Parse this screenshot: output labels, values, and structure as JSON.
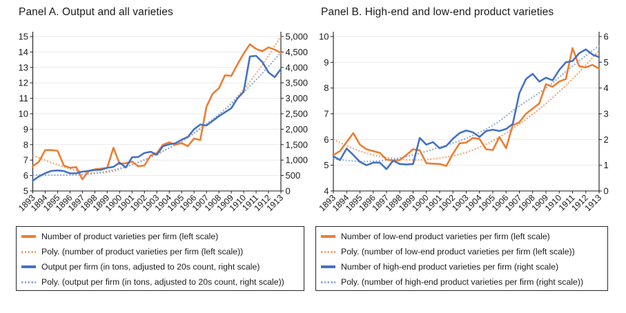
{
  "colors": {
    "orange": "#ED7D31",
    "orange_light": "#F2A16E",
    "blue": "#4472C4",
    "blue_light": "#8FAADC",
    "grid": "#e9e9e9",
    "axis": "#1a1a1a",
    "text": "#1a1a1a",
    "background": "#ffffff"
  },
  "chart_data": [
    {
      "type": "line",
      "title": "Panel A. Output and all varieties",
      "x_start": 1893,
      "x_step": 0.5,
      "x_ticks": [
        "1893",
        "1894",
        "1895",
        "1896",
        "1897",
        "1898",
        "1899",
        "1900",
        "1901",
        "1902",
        "1903",
        "1904",
        "1905",
        "1906",
        "1907",
        "1908",
        "1909",
        "1910",
        "1911",
        "1912",
        "1913"
      ],
      "left_axis": {
        "range": [
          5,
          15
        ],
        "tick_values": [
          5,
          6,
          7,
          8,
          9,
          10,
          11,
          12,
          13,
          14,
          15
        ],
        "tick_labels": [
          "5",
          "6",
          "7",
          "8",
          "9",
          "10",
          "11",
          "12",
          "13",
          "14",
          "15"
        ]
      },
      "right_axis": {
        "range": [
          0,
          5000
        ],
        "tick_values": [
          0,
          500,
          1000,
          1500,
          2000,
          2500,
          3000,
          3500,
          4000,
          4500,
          5000
        ],
        "tick_labels": [
          "0",
          "500",
          "1,000",
          "1,500",
          "2,000",
          "2,500",
          "3,000",
          "3,500",
          "4,000",
          "4,500",
          "5,000"
        ]
      },
      "series": [
        {
          "name": "varieties",
          "label": "Number of product varieties per firm (left scale)",
          "color_key": "orange",
          "style": "solid",
          "scale": "left",
          "values": [
            6.6,
            6.9,
            7.65,
            7.65,
            7.6,
            6.65,
            6.5,
            6.55,
            5.75,
            6.3,
            6.4,
            6.45,
            6.5,
            7.8,
            6.75,
            6.8,
            6.9,
            6.6,
            6.65,
            7.3,
            7.45,
            8.0,
            8.15,
            8.0,
            8.1,
            7.9,
            8.4,
            8.3,
            10.45,
            11.3,
            11.65,
            12.5,
            12.45,
            13.2,
            13.9,
            14.5,
            14.2,
            14.05,
            14.3,
            14.15,
            13.95
          ]
        },
        {
          "name": "varieties-trend",
          "label": "Poly. (number of product varieties per firm (left scale))",
          "color_key": "orange_light",
          "style": "dotted",
          "scale": "left",
          "x": [
            1893,
            1895,
            1897,
            1899,
            1901,
            1903,
            1905,
            1907,
            1909,
            1911,
            1913
          ],
          "values": [
            7.3,
            6.7,
            6.25,
            6.2,
            6.7,
            7.4,
            8.2,
            9.3,
            10.7,
            12.6,
            15.0
          ]
        },
        {
          "name": "output",
          "label": "Output per firm (in tons, adjusted to 20s count, right scale)",
          "color_key": "blue",
          "style": "solid",
          "scale": "right",
          "values": [
            335,
            470,
            575,
            650,
            665,
            645,
            570,
            575,
            625,
            650,
            680,
            685,
            750,
            780,
            920,
            760,
            1090,
            1100,
            1230,
            1270,
            1175,
            1450,
            1510,
            1545,
            1660,
            1750,
            2000,
            2150,
            2120,
            2270,
            2420,
            2550,
            2680,
            3000,
            3215,
            4355,
            4375,
            4175,
            3840,
            3685,
            3950
          ]
        },
        {
          "name": "output-trend",
          "label": "Poly. (output per firm (in tons, adjusted to 20s count, right scale))",
          "color_key": "blue_light",
          "style": "dotted",
          "scale": "right",
          "x": [
            1893,
            1895,
            1897,
            1899,
            1901,
            1903,
            1905,
            1907,
            1909,
            1911,
            1913
          ],
          "values": [
            515,
            515,
            530,
            640,
            850,
            1180,
            1630,
            2170,
            2820,
            3600,
            4480
          ]
        }
      ]
    },
    {
      "type": "line",
      "title": "Panel B. High-end and low-end product varieties",
      "x_start": 1893,
      "x_step": 0.5,
      "x_ticks": [
        "1893",
        "1894",
        "1895",
        "1896",
        "1897",
        "1898",
        "1899",
        "1900",
        "1901",
        "1902",
        "1903",
        "1904",
        "1905",
        "1906",
        "1907",
        "1908",
        "1909",
        "1910",
        "1911",
        "1912",
        "1913"
      ],
      "left_axis": {
        "range": [
          4,
          10
        ],
        "tick_values": [
          4,
          5,
          6,
          7,
          8,
          9,
          10
        ],
        "tick_labels": [
          "4",
          "5",
          "6",
          "7",
          "8",
          "9",
          "10"
        ]
      },
      "right_axis": {
        "range": [
          0,
          6
        ],
        "tick_values": [
          0,
          1,
          2,
          3,
          4,
          5,
          6
        ],
        "tick_labels": [
          "0",
          "1",
          "2",
          "3",
          "4",
          "5",
          "6"
        ]
      },
      "series": [
        {
          "name": "low-end-varieties",
          "label": "Number of low-end product varieties per firm (left scale)",
          "color_key": "orange",
          "style": "solid",
          "scale": "left",
          "values": [
            5.4,
            5.55,
            5.9,
            6.25,
            5.8,
            5.62,
            5.55,
            5.48,
            5.22,
            5.18,
            5.2,
            5.4,
            5.62,
            5.58,
            5.08,
            5.06,
            5.05,
            4.97,
            5.45,
            5.85,
            5.88,
            6.06,
            6.02,
            5.62,
            5.59,
            6.1,
            5.66,
            6.55,
            6.67,
            7.0,
            7.2,
            7.4,
            8.15,
            8.05,
            8.25,
            8.35,
            9.55,
            8.85,
            8.8,
            8.9,
            8.75
          ]
        },
        {
          "name": "low-end-trend",
          "label": "Poly. (number of low-end product varieties per firm (left scale))",
          "color_key": "orange_light",
          "style": "dotted",
          "scale": "left",
          "x": [
            1893,
            1895,
            1897,
            1899,
            1901,
            1903,
            1905,
            1907,
            1909,
            1911,
            1913
          ],
          "values": [
            6.0,
            5.55,
            5.3,
            5.2,
            5.28,
            5.5,
            5.95,
            6.6,
            7.4,
            8.35,
            9.45
          ]
        },
        {
          "name": "high-end-varieties",
          "label": "Number of high-end product varieties per firm (right scale)",
          "color_key": "blue",
          "style": "solid",
          "scale": "right",
          "values": [
            1.35,
            1.2,
            1.65,
            1.4,
            1.13,
            1.0,
            1.1,
            1.1,
            0.85,
            1.18,
            1.05,
            1.03,
            1.05,
            2.06,
            1.8,
            1.9,
            1.66,
            1.75,
            2.03,
            2.25,
            2.35,
            2.28,
            2.1,
            2.33,
            2.38,
            2.33,
            2.41,
            2.6,
            3.8,
            4.35,
            4.55,
            4.25,
            4.4,
            4.3,
            4.7,
            5.0,
            5.05,
            5.35,
            5.5,
            5.3,
            5.2
          ]
        },
        {
          "name": "high-end-trend",
          "label": "Poly. (number of high-end product varieties per firm (right scale))",
          "color_key": "blue_light",
          "style": "dotted",
          "scale": "right",
          "x": [
            1893,
            1895,
            1897,
            1899,
            1901,
            1903,
            1905,
            1907,
            1909,
            1911,
            1913
          ],
          "values": [
            1.25,
            1.15,
            1.2,
            1.4,
            1.7,
            2.05,
            2.55,
            3.3,
            4.0,
            4.85,
            5.65
          ]
        }
      ]
    }
  ]
}
